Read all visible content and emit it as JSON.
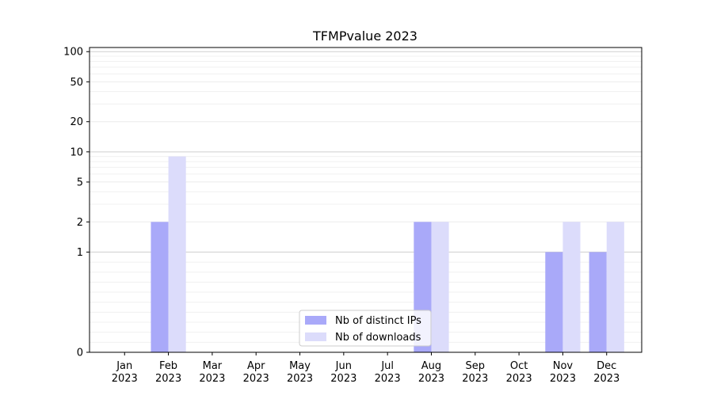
{
  "chart_data": {
    "type": "bar",
    "title": "TFMPvalue 2023",
    "categories": [
      [
        "Jan",
        "2023"
      ],
      [
        "Feb",
        "2023"
      ],
      [
        "Mar",
        "2023"
      ],
      [
        "Apr",
        "2023"
      ],
      [
        "May",
        "2023"
      ],
      [
        "Jun",
        "2023"
      ],
      [
        "Jul",
        "2023"
      ],
      [
        "Aug",
        "2023"
      ],
      [
        "Sep",
        "2023"
      ],
      [
        "Oct",
        "2023"
      ],
      [
        "Nov",
        "2023"
      ],
      [
        "Dec",
        "2023"
      ]
    ],
    "series": [
      {
        "name": "Nb of distinct IPs",
        "color": "#a9a9f9",
        "values": [
          0,
          2,
          0,
          0,
          0,
          0,
          0,
          2,
          0,
          0,
          1,
          1
        ]
      },
      {
        "name": "Nb of downloads",
        "color": "#dcdcfb",
        "values": [
          0,
          9,
          0,
          0,
          0,
          0,
          0,
          2,
          0,
          0,
          2,
          2
        ]
      }
    ],
    "y_scale": "symlog",
    "ylim": [
      0,
      110
    ],
    "y_ticks": [
      0,
      1,
      2,
      5,
      10,
      20,
      50,
      100
    ],
    "y_tick_labels": [
      "0",
      "1",
      "2",
      "5",
      "10",
      "20",
      "50",
      "100"
    ],
    "grid": true,
    "legend_position": "bottom-center",
    "xlabel": "",
    "ylabel": ""
  }
}
